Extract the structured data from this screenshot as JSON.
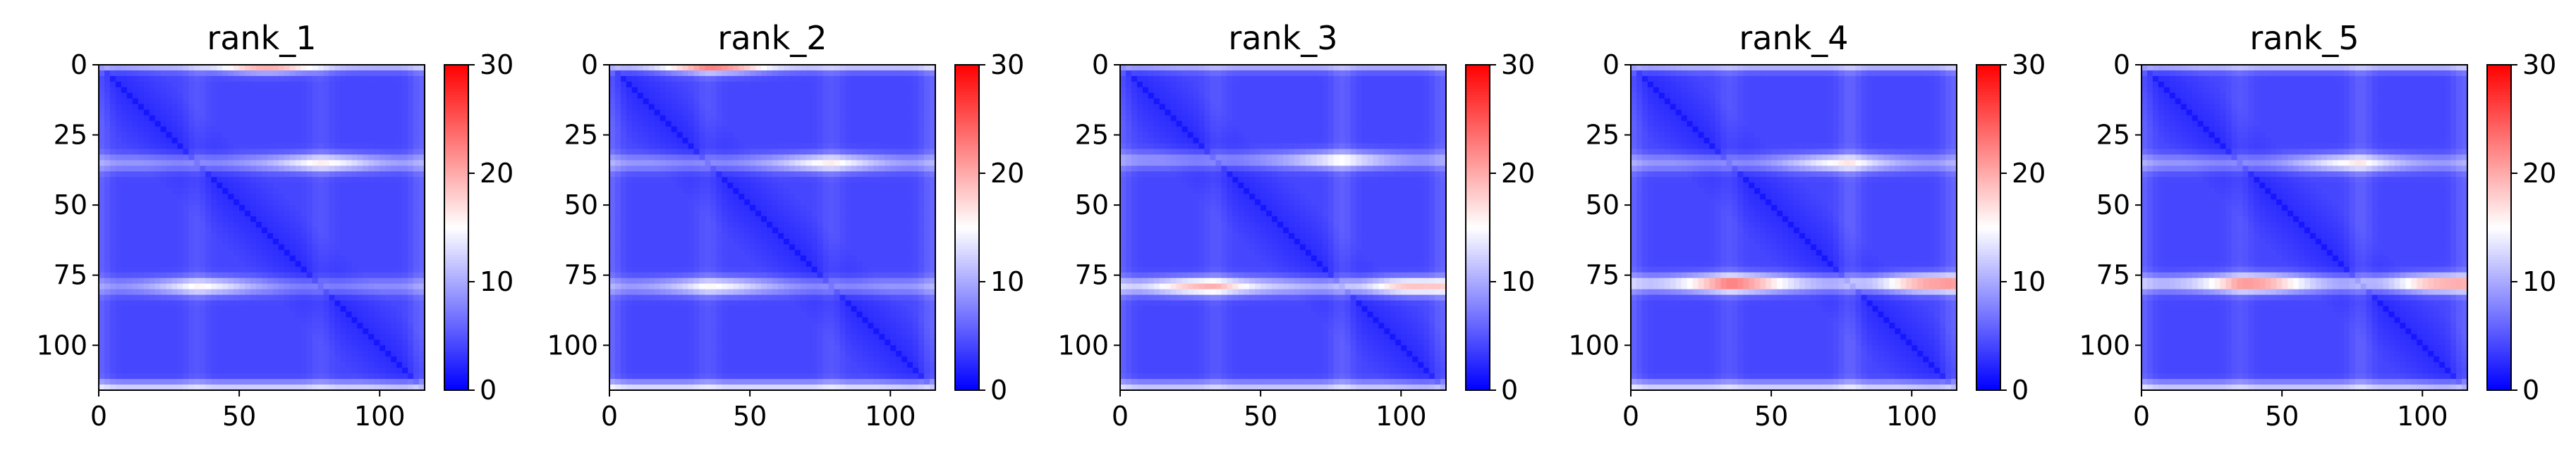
{
  "chart_data": [
    {
      "type": "heatmap",
      "title": "rank_1",
      "grid_size": 116,
      "x_ticks": [
        0,
        50,
        100
      ],
      "y_ticks": [
        0,
        25,
        50,
        75,
        100
      ],
      "xlim": [
        0,
        116
      ],
      "ylim": [
        116,
        0
      ],
      "colorbar": {
        "min": 0,
        "max": 30,
        "ticks": [
          0,
          10,
          20,
          30
        ],
        "colormap": "bwr"
      },
      "base_value": 2.5,
      "band_rows": [
        {
          "row": 0,
          "peak": 16
        },
        {
          "row": 35,
          "peak": 11
        },
        {
          "row": 79,
          "peak": 10
        },
        {
          "row": 115,
          "peak": 17
        }
      ],
      "hot_spots": [
        {
          "row": 35,
          "col": 80,
          "peak": 13
        },
        {
          "row": 79,
          "col": 37,
          "peak": 13
        },
        {
          "row": 0,
          "col": 60,
          "peak": 20
        }
      ]
    },
    {
      "type": "heatmap",
      "title": "rank_2",
      "grid_size": 116,
      "x_ticks": [
        0,
        50,
        100
      ],
      "y_ticks": [
        0,
        25,
        50,
        75,
        100
      ],
      "xlim": [
        0,
        116
      ],
      "ylim": [
        116,
        0
      ],
      "colorbar": {
        "min": 0,
        "max": 30,
        "ticks": [
          0,
          10,
          20,
          30
        ],
        "colormap": "bwr"
      },
      "base_value": 2.5,
      "band_rows": [
        {
          "row": 0,
          "peak": 18
        },
        {
          "row": 35,
          "peak": 11
        },
        {
          "row": 79,
          "peak": 11
        },
        {
          "row": 115,
          "peak": 18
        }
      ],
      "hot_spots": [
        {
          "row": 35,
          "col": 78,
          "peak": 13
        },
        {
          "row": 79,
          "col": 38,
          "peak": 12
        },
        {
          "row": 0,
          "col": 38,
          "peak": 22
        }
      ]
    },
    {
      "type": "heatmap",
      "title": "rank_3",
      "grid_size": 116,
      "x_ticks": [
        0,
        50,
        100
      ],
      "y_ticks": [
        0,
        25,
        50,
        75,
        100
      ],
      "xlim": [
        0,
        116
      ],
      "ylim": [
        116,
        0
      ],
      "colorbar": {
        "min": 0,
        "max": 30,
        "ticks": [
          0,
          10,
          20,
          30
        ],
        "colormap": "bwr"
      },
      "base_value": 2.5,
      "band_rows": [
        {
          "row": 0,
          "peak": 15
        },
        {
          "row": 34,
          "peak": 11
        },
        {
          "row": 79,
          "peak": 15
        },
        {
          "row": 115,
          "peak": 16
        }
      ],
      "hot_spots": [
        {
          "row": 79,
          "col": 30,
          "peak": 16
        },
        {
          "row": 79,
          "col": 105,
          "peak": 15
        },
        {
          "row": 34,
          "col": 78,
          "peak": 12
        }
      ]
    },
    {
      "type": "heatmap",
      "title": "rank_4",
      "grid_size": 116,
      "x_ticks": [
        0,
        50,
        100
      ],
      "y_ticks": [
        0,
        25,
        50,
        75,
        100
      ],
      "xlim": [
        0,
        116
      ],
      "ylim": [
        116,
        0
      ],
      "colorbar": {
        "min": 0,
        "max": 30,
        "ticks": [
          0,
          10,
          20,
          30
        ],
        "colormap": "bwr"
      },
      "base_value": 2.5,
      "band_rows": [
        {
          "row": 0,
          "peak": 16
        },
        {
          "row": 35,
          "peak": 11
        },
        {
          "row": 78,
          "peak": 16
        },
        {
          "row": 115,
          "peak": 17
        }
      ],
      "hot_spots": [
        {
          "row": 78,
          "col": 37,
          "peak": 22
        },
        {
          "row": 78,
          "col": 108,
          "peak": 20
        },
        {
          "row": 35,
          "col": 75,
          "peak": 13
        }
      ]
    },
    {
      "type": "heatmap",
      "title": "rank_5",
      "grid_size": 116,
      "x_ticks": [
        0,
        50,
        100
      ],
      "y_ticks": [
        0,
        25,
        50,
        75,
        100
      ],
      "xlim": [
        0,
        116
      ],
      "ylim": [
        116,
        0
      ],
      "colorbar": {
        "min": 0,
        "max": 30,
        "ticks": [
          0,
          10,
          20,
          30
        ],
        "colormap": "bwr"
      },
      "base_value": 2.5,
      "band_rows": [
        {
          "row": 0,
          "peak": 16
        },
        {
          "row": 35,
          "peak": 11
        },
        {
          "row": 78,
          "peak": 15
        },
        {
          "row": 115,
          "peak": 16
        }
      ],
      "hot_spots": [
        {
          "row": 78,
          "col": 40,
          "peak": 21
        },
        {
          "row": 78,
          "col": 108,
          "peak": 19
        },
        {
          "row": 35,
          "col": 75,
          "peak": 13
        }
      ]
    }
  ]
}
